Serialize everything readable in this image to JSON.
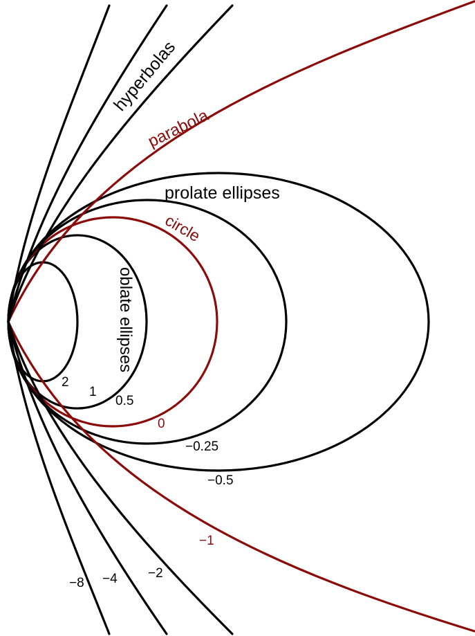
{
  "colors": {
    "black": "#000000",
    "red": "#8b0a0a",
    "background": "#ffffff"
  },
  "region_labels": {
    "hyperbolas": "hyperbolas",
    "parabola": "parabola",
    "prolate": "prolate ellipses",
    "circle": "circle",
    "oblate": "oblate ellipses"
  },
  "curves": [
    {
      "k": "2",
      "label": "2",
      "family": "oblate"
    },
    {
      "k": "1",
      "label": "1",
      "family": "oblate"
    },
    {
      "k": "0.5",
      "label": "0.5",
      "family": "oblate"
    },
    {
      "k": "0",
      "label": "0",
      "family": "circle"
    },
    {
      "k": "-0.25",
      "label": "−0.25",
      "family": "prolate"
    },
    {
      "k": "-0.5",
      "label": "−0.5",
      "family": "prolate"
    },
    {
      "k": "-1",
      "label": "−1",
      "family": "parabola"
    },
    {
      "k": "-2",
      "label": "−2",
      "family": "hyperbola"
    },
    {
      "k": "-4",
      "label": "−4",
      "family": "hyperbola"
    },
    {
      "k": "-8",
      "label": "−8",
      "family": "hyperbola"
    }
  ]
}
